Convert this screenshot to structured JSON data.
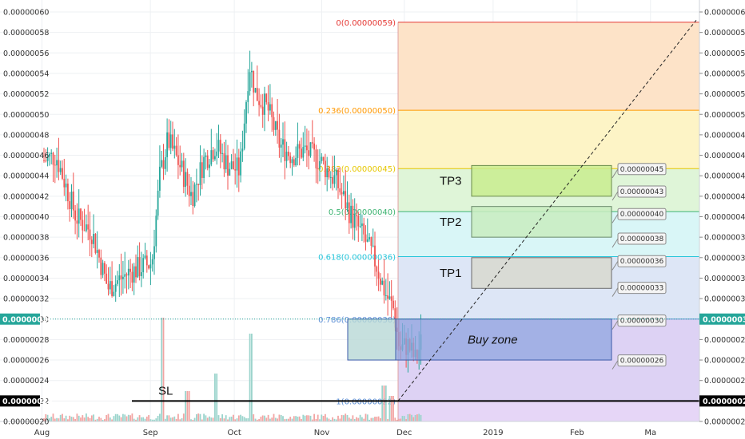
{
  "chart_data": {
    "type": "candlestick",
    "y_axis": {
      "range": [
        2e-07,
        6e-07
      ],
      "ticks": [
        "0.00000020",
        "0.00000022",
        "0.00000024",
        "0.00000026",
        "0.00000028",
        "0.00000030",
        "0.00000032",
        "0.00000034",
        "0.00000036",
        "0.00000038",
        "0.00000040",
        "0.00000042",
        "0.00000044",
        "0.00000046",
        "0.00000048",
        "0.00000050",
        "0.00000052",
        "0.00000054",
        "0.00000056",
        "0.00000058",
        "0.00000060"
      ]
    },
    "x_axis": {
      "ticks": [
        {
          "label": "Aug",
          "t": 0.06
        },
        {
          "label": "Sep",
          "t": 0.215
        },
        {
          "label": "Oct",
          "t": 0.335
        },
        {
          "label": "Nov",
          "t": 0.46
        },
        {
          "label": "Dec",
          "t": 0.578
        },
        {
          "label": "2019",
          "t": 0.705
        },
        {
          "label": "Feb",
          "t": 0.825
        },
        {
          "label": "Ma",
          "t": 0.93
        }
      ]
    },
    "price_badges": [
      {
        "label": "0.00000030",
        "value": 3e-07,
        "color": "#26a69a"
      },
      {
        "label": "0.00000022",
        "value": 2.2e-07,
        "color": "#000000"
      }
    ],
    "fibonacci": [
      {
        "label": "0(0.00000059)",
        "value": 5.9e-07,
        "color": "#e53935"
      },
      {
        "label": "0.236(0.00000050)",
        "value": 5.04e-07,
        "color": "#ff9800"
      },
      {
        "label": "0.382(0.00000045)",
        "value": 4.47e-07,
        "color": "#e6c700"
      },
      {
        "label": "0.5(0.00000040)",
        "value": 4.05e-07,
        "color": "#3cb371"
      },
      {
        "label": "0.618(0.00000036)",
        "value": 3.61e-07,
        "color": "#26c6da"
      },
      {
        "label": "0.786(0.00000030)",
        "value": 3e-07,
        "color": "#5c8fd6"
      },
      {
        "label": "1(0.00000022)",
        "value": 2.2e-07,
        "color": "#5c8fd6"
      }
    ],
    "zones": [
      {
        "label": "TP3",
        "low": 4.2e-07,
        "high": 4.5e-07
      },
      {
        "label": "TP2",
        "low": 3.8e-07,
        "high": 4.1e-07
      },
      {
        "label": "TP1",
        "low": 3.3e-07,
        "high": 3.6e-07
      },
      {
        "label": "Buy zone",
        "low": 2.6e-07,
        "high": 3e-07
      }
    ],
    "callouts": [
      "0.00000045",
      "0.00000043",
      "0.00000040",
      "0.00000038",
      "0.00000036",
      "0.00000033",
      "0.00000030",
      "0.00000026"
    ],
    "stop_loss": {
      "label": "SL",
      "value": 2.2e-07
    }
  }
}
